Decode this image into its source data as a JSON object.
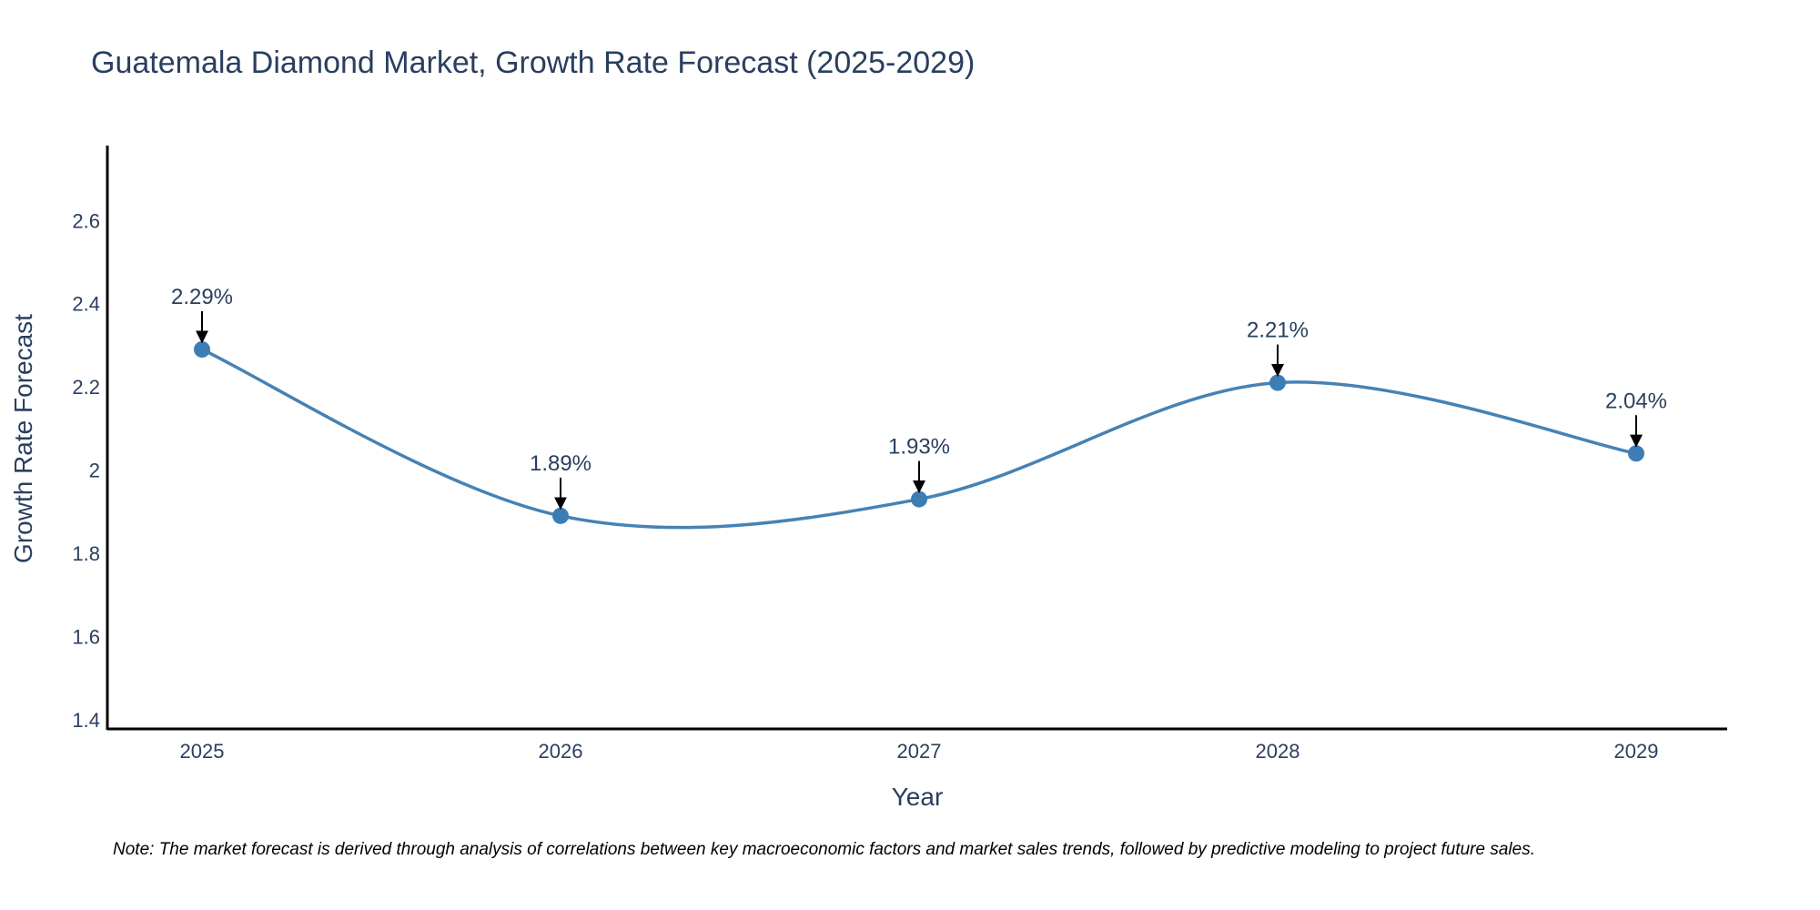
{
  "chart_data": {
    "type": "line",
    "title": "Guatemala Diamond Market, Growth Rate Forecast (2025-2029)",
    "xlabel": "Year",
    "ylabel": "Growth Rate Forecast",
    "categories": [
      "2025",
      "2026",
      "2027",
      "2028",
      "2029"
    ],
    "series": [
      {
        "name": "Growth Rate Forecast",
        "values": [
          2.29,
          1.89,
          1.93,
          2.21,
          2.04
        ]
      }
    ],
    "data_labels": [
      "2.29%",
      "1.89%",
      "1.93%",
      "2.21%",
      "2.04%"
    ],
    "ylim": [
      1.38,
      2.78
    ],
    "yticks": [
      1.4,
      1.6,
      1.8,
      2,
      2.2,
      2.4,
      2.6
    ],
    "ytick_labels": [
      "1.4",
      "1.6",
      "1.8",
      "2",
      "2.2",
      "2.4",
      "2.6"
    ],
    "line_shape": "spline",
    "grid": false,
    "legend": "none",
    "colors": {
      "line": "#4682b4",
      "marker": "#3c7db5",
      "axis": "#000000",
      "text": "#2a3f5f",
      "arrow": "#000000"
    }
  },
  "note": "Note: The market forecast is derived through analysis of correlations between key macroeconomic factors and market sales trends, followed by predictive modeling to project future sales."
}
